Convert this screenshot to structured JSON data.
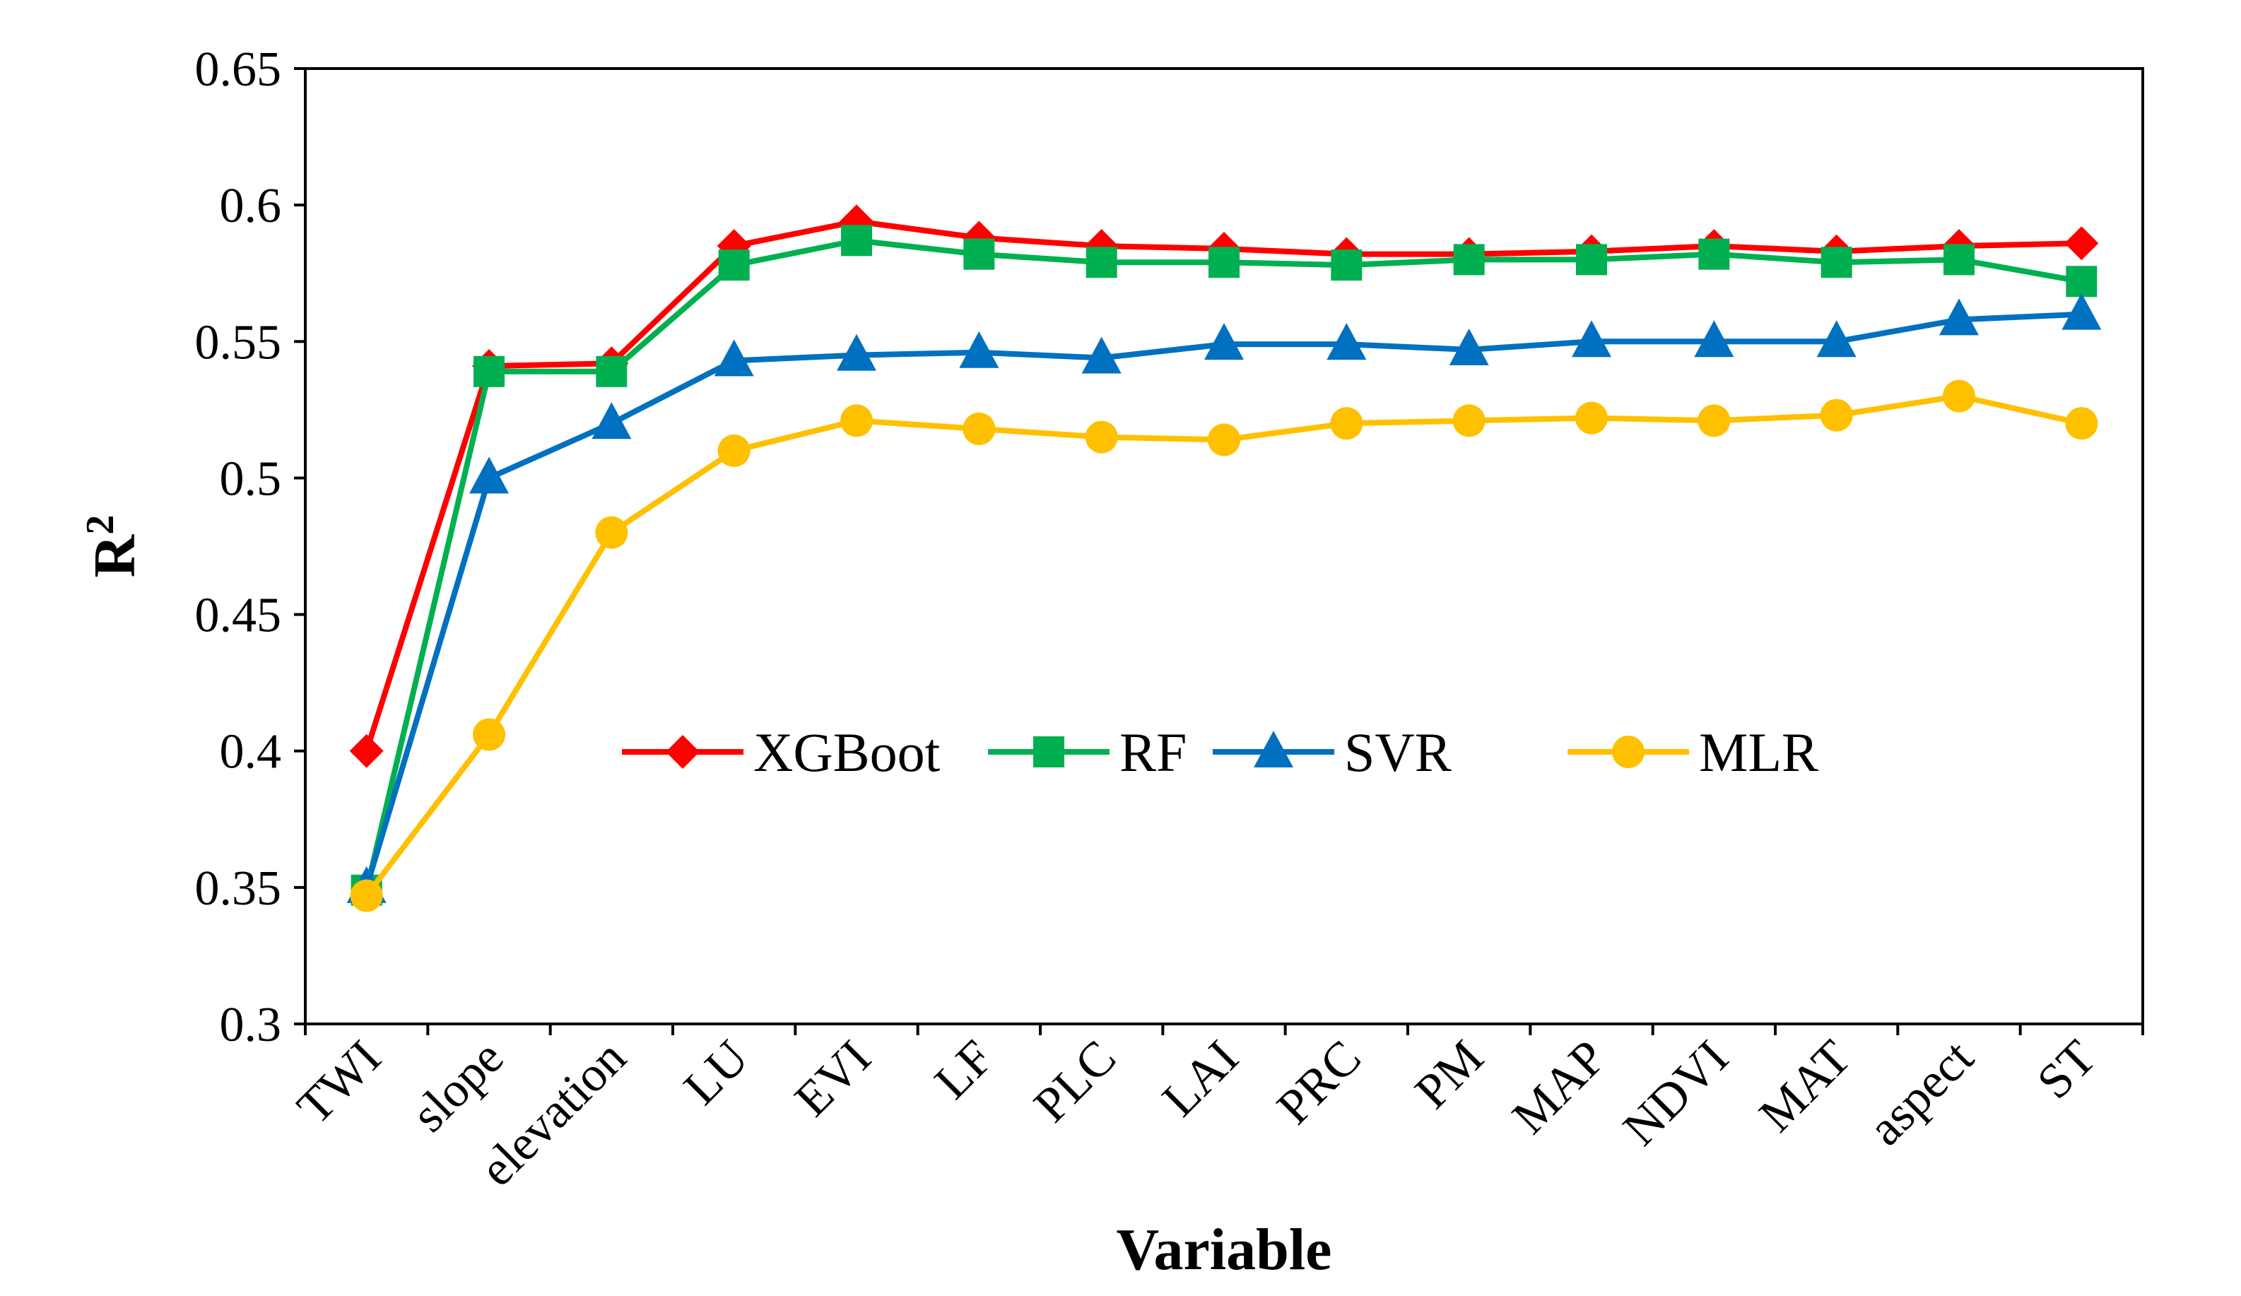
{
  "chart_data": {
    "type": "line",
    "title": "",
    "xlabel": "Variable",
    "ylabel": "R",
    "ylabel_sup": "2",
    "ylim": [
      0.3,
      0.65
    ],
    "ytick_values": [
      0.3,
      0.35,
      0.4,
      0.45,
      0.5,
      0.55,
      0.6,
      0.65
    ],
    "ytick_labels": [
      "0.3",
      "0.35",
      "0.4",
      "0.45",
      "0.5",
      "0.55",
      "0.6",
      "0.65"
    ],
    "grid": false,
    "legend_position": "center",
    "categories": [
      "TWI",
      "slope",
      "elevation",
      "LU",
      "EVI",
      "LF",
      "PLC",
      "LAI",
      "PRC",
      "PM",
      "MAP",
      "NDVI",
      "MAT",
      "aspect",
      "ST"
    ],
    "series": [
      {
        "name": "XGBoot",
        "color": "#ff0000",
        "marker": "diamond",
        "values": [
          0.4,
          0.541,
          0.542,
          0.585,
          0.594,
          0.588,
          0.585,
          0.584,
          0.582,
          0.582,
          0.583,
          0.585,
          0.583,
          0.585,
          0.586
        ]
      },
      {
        "name": "RF",
        "color": "#00b050",
        "marker": "square",
        "values": [
          0.349,
          0.539,
          0.539,
          0.578,
          0.587,
          0.582,
          0.579,
          0.579,
          0.578,
          0.58,
          0.58,
          0.582,
          0.579,
          0.58,
          0.572
        ]
      },
      {
        "name": "SVR",
        "color": "#0070c0",
        "marker": "triangle",
        "values": [
          0.35,
          0.5,
          0.52,
          0.543,
          0.545,
          0.546,
          0.544,
          0.549,
          0.549,
          0.547,
          0.55,
          0.55,
          0.55,
          0.558,
          0.56
        ]
      },
      {
        "name": "MLR",
        "color": "#ffc000",
        "marker": "circle",
        "values": [
          0.347,
          0.406,
          0.48,
          0.51,
          0.521,
          0.518,
          0.515,
          0.514,
          0.52,
          0.521,
          0.522,
          0.521,
          0.523,
          0.53,
          0.52
        ]
      }
    ]
  }
}
